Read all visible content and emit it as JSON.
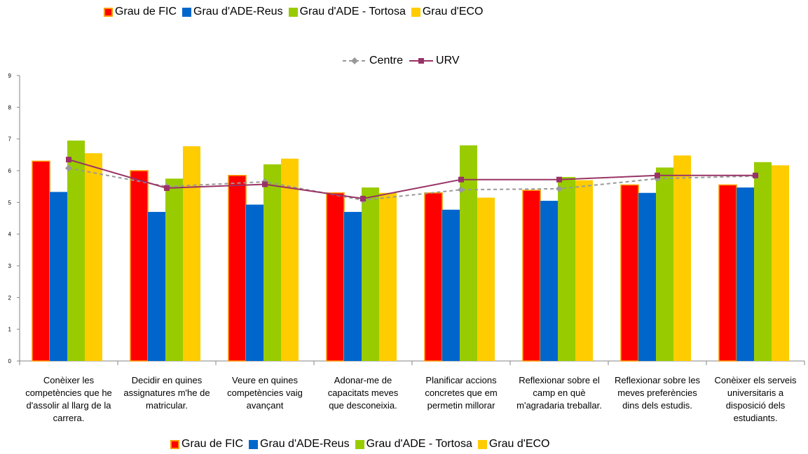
{
  "chart_data": {
    "type": "bar",
    "categories": [
      "Conèixer les competències que he d'assolir al llarg de la carrera.",
      "Decidir en quines assignatures m'he de matricular.",
      "Veure en quines competències vaig avançant",
      "Adonar-me de capacitats meves que desconeixia.",
      "Planificar accions concretes que em permetin millorar",
      "Reflexionar sobre el camp en què m'agradaria treballar.",
      "Reflexionar sobre les meves preferències dins dels estudis.",
      "Conèixer els serveis universitaris a disposició dels estudiants."
    ],
    "series": [
      {
        "name": "Grau de FIC",
        "color": "#ff0000",
        "edgecolor": "#ff9900",
        "values": [
          6.3,
          6.0,
          5.85,
          5.3,
          5.3,
          5.38,
          5.55,
          5.55
        ]
      },
      {
        "name": "Grau d'ADE-Reus",
        "color": "#0066cc",
        "values": [
          5.33,
          4.7,
          4.93,
          4.7,
          4.77,
          5.05,
          5.3,
          5.47
        ]
      },
      {
        "name": "Grau d'ADE - Tortosa",
        "color": "#99cc00",
        "values": [
          6.95,
          5.75,
          6.2,
          5.47,
          6.8,
          5.8,
          6.1,
          6.27
        ]
      },
      {
        "name": "Grau d'ECO",
        "color": "#ffcc00",
        "values": [
          6.55,
          6.77,
          6.38,
          5.3,
          5.15,
          5.7,
          6.48,
          6.17
        ]
      },
      {
        "name": "Centre",
        "type": "line",
        "color": "#999999",
        "dashed": true,
        "marker": "diamond",
        "values": [
          6.08,
          5.5,
          5.65,
          5.07,
          5.4,
          5.43,
          5.75,
          5.83
        ]
      },
      {
        "name": "URV",
        "type": "line",
        "color": "#993366",
        "marker": "square",
        "values": [
          6.35,
          5.45,
          5.57,
          5.12,
          5.72,
          5.72,
          5.85,
          5.85
        ]
      }
    ],
    "ylim": [
      0,
      9
    ],
    "yticks": [
      0,
      1,
      2,
      3,
      4,
      5,
      6,
      7,
      8,
      9
    ],
    "grid": false
  }
}
